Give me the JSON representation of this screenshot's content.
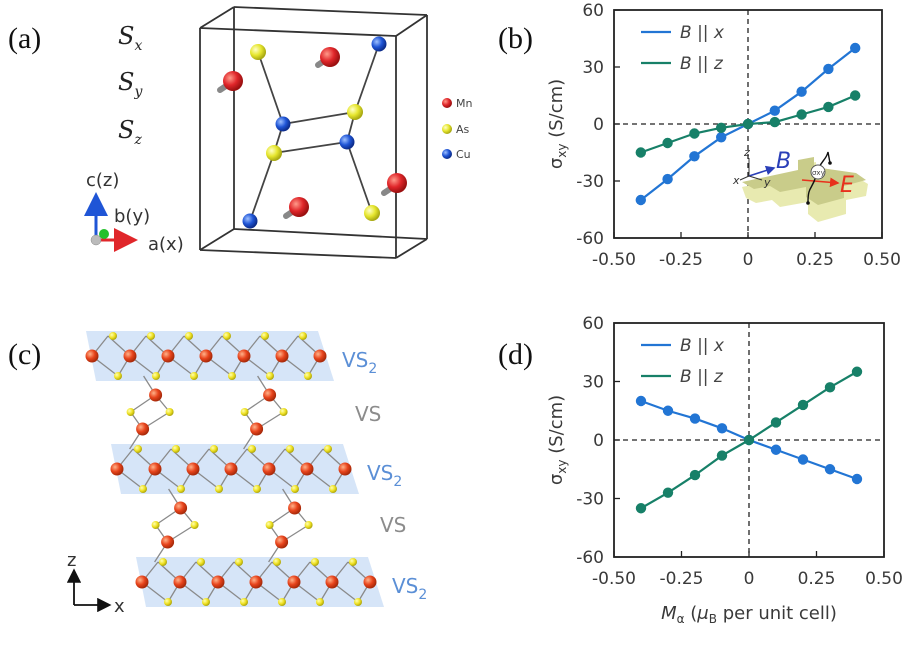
{
  "panels": {
    "a": {
      "label": "(a)",
      "spins": [
        "S",
        "S",
        "S"
      ],
      "spin_subs": [
        "x",
        "y",
        "z"
      ],
      "axes": {
        "c": "c(z)",
        "b": "b(y)",
        "a": "a(x)"
      },
      "legend": [
        {
          "name": "Mn",
          "color": "#e0262a"
        },
        {
          "name": "As",
          "color": "#e6e62e"
        },
        {
          "name": "Cu",
          "color": "#1f55d6"
        }
      ]
    },
    "b": {
      "label": "(b)"
    },
    "c": {
      "label": "(c)",
      "layers": [
        "VS",
        "VS",
        "VS",
        "VS",
        "VS"
      ],
      "layer_subs": [
        "2",
        "",
        "2",
        "",
        "2"
      ],
      "axes": {
        "z": "z",
        "x": "x"
      }
    },
    "d": {
      "label": "(d)"
    }
  },
  "inset": {
    "z": "z",
    "x": "x",
    "y": "y",
    "B": "B",
    "E": "E",
    "sigma": "σxy"
  },
  "colors": {
    "blue": "#2275d4",
    "green": "#178068",
    "vs2": "#5b8fd6",
    "vs": "#8c8c8c"
  },
  "chart_data": [
    {
      "id": "b",
      "type": "line",
      "title": "",
      "xlabel": "",
      "ylabel": "σxy (S/cm)",
      "xlim": [
        -0.5,
        0.5
      ],
      "ylim": [
        -60,
        60
      ],
      "xticks": [
        -0.5,
        -0.25,
        0,
        0.25,
        0.5
      ],
      "xtick_labels": [
        "-0.50",
        "-0.25",
        "0",
        "0.25",
        "0.50"
      ],
      "yticks": [
        60,
        30,
        0,
        -30,
        -60
      ],
      "ytick_labels": [
        "60",
        "30",
        "0",
        "-30",
        "-60"
      ],
      "legend_position": "top-left",
      "x": [
        -0.4,
        -0.3,
        -0.2,
        -0.1,
        0,
        0.1,
        0.2,
        0.3,
        0.4
      ],
      "series": [
        {
          "name": "B || x",
          "label_main": "B",
          "label_axis": "x",
          "color": "#2275d4",
          "values": [
            -40,
            -29,
            -17,
            -7,
            0,
            7,
            17,
            29,
            40
          ]
        },
        {
          "name": "B || z",
          "label_main": "B",
          "label_axis": "z",
          "color": "#178068",
          "values": [
            -15,
            -10,
            -5,
            -2,
            0,
            1,
            5,
            9,
            15
          ]
        }
      ]
    },
    {
      "id": "d",
      "type": "line",
      "title": "",
      "xlabel": "Mα (μB per unit cell)",
      "ylabel": "σxy (S/cm)",
      "xlim": [
        -0.5,
        0.5
      ],
      "ylim": [
        -60,
        60
      ],
      "xticks": [
        -0.5,
        -0.25,
        0,
        0.25,
        0.5
      ],
      "xtick_labels": [
        "-0.50",
        "-0.25",
        "0",
        "0.25",
        "0.50"
      ],
      "yticks": [
        60,
        30,
        0,
        -30,
        -60
      ],
      "ytick_labels": [
        "60",
        "30",
        "0",
        "-30",
        "-60"
      ],
      "legend_position": "top-left",
      "x": [
        -0.4,
        -0.3,
        -0.2,
        -0.1,
        0,
        0.1,
        0.2,
        0.3,
        0.4
      ],
      "series": [
        {
          "name": "B || x",
          "label_main": "B",
          "label_axis": "x",
          "color": "#2275d4",
          "values": [
            20,
            15,
            11,
            6,
            0,
            -5,
            -10,
            -15,
            -20
          ]
        },
        {
          "name": "B || z",
          "label_main": "B",
          "label_axis": "z",
          "color": "#178068",
          "values": [
            -35,
            -27,
            -18,
            -8,
            0,
            9,
            18,
            27,
            35
          ]
        }
      ]
    }
  ]
}
